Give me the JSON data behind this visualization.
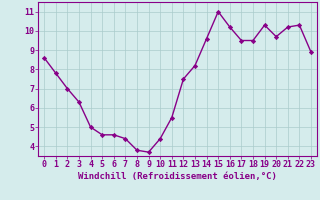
{
  "x": [
    0,
    1,
    2,
    3,
    4,
    5,
    6,
    7,
    8,
    9,
    10,
    11,
    12,
    13,
    14,
    15,
    16,
    17,
    18,
    19,
    20,
    21,
    22,
    23
  ],
  "y": [
    8.6,
    7.8,
    7.0,
    6.3,
    5.0,
    4.6,
    4.6,
    4.4,
    3.8,
    3.7,
    4.4,
    5.5,
    7.5,
    8.2,
    9.6,
    11.0,
    10.2,
    9.5,
    9.5,
    10.3,
    9.7,
    10.2,
    10.3,
    8.9
  ],
  "line_color": "#880088",
  "marker": "D",
  "marker_size": 2.2,
  "xlabel": "Windchill (Refroidissement éolien,°C)",
  "xlim": [
    -0.5,
    23.5
  ],
  "ylim": [
    3.5,
    11.5
  ],
  "yticks": [
    4,
    5,
    6,
    7,
    8,
    9,
    10,
    11
  ],
  "xticks": [
    0,
    1,
    2,
    3,
    4,
    5,
    6,
    7,
    8,
    9,
    10,
    11,
    12,
    13,
    14,
    15,
    16,
    17,
    18,
    19,
    20,
    21,
    22,
    23
  ],
  "background_color": "#d5ecec",
  "grid_color": "#aacccc",
  "axis_color": "#880088",
  "tick_color": "#880088",
  "label_color": "#880088",
  "xlabel_fontsize": 6.5,
  "tick_fontsize": 6.0,
  "line_width": 1.0
}
